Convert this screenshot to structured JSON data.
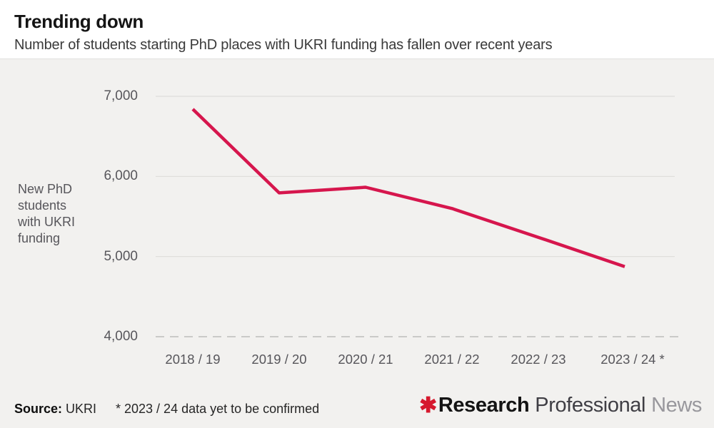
{
  "header": {
    "title": "Trending down",
    "subtitle": "Number of students starting PhD places with UKRI funding has fallen over recent years"
  },
  "chart_data": {
    "type": "line",
    "title": "Trending down",
    "subtitle": "Number of students starting PhD places with UKRI funding has fallen over recent years",
    "ylabel": "New PhD students with UKRI funding",
    "xlabel": "",
    "categories": [
      "2018 / 19",
      "2019 / 20",
      "2020 / 21",
      "2021 / 22",
      "2022 / 23",
      "2023 / 24 *"
    ],
    "series": [
      {
        "name": "New PhD students with UKRI funding",
        "values": [
          6840,
          5795,
          5865,
          5600,
          5240,
          4875
        ]
      }
    ],
    "ylim": [
      4000,
      7000
    ],
    "ytick_values": [
      7000,
      6000,
      5000,
      4000
    ],
    "ytick_labels": [
      "7,000",
      "6,000",
      "5,000",
      "4,000"
    ],
    "grid": "horizontal",
    "bottom_gridline_style": "dashed",
    "legend": "none",
    "line_color": "#d6164d"
  },
  "footer": {
    "source_label": "Source:",
    "source_value": "UKRI",
    "note": "* 2023 / 24 data yet to be confirmed",
    "logo": {
      "asterisk_icon": "✱",
      "asterisk_color": "#d6182d",
      "part_bold": "Research",
      "part_regular": "Professional",
      "part_light": "News"
    }
  }
}
